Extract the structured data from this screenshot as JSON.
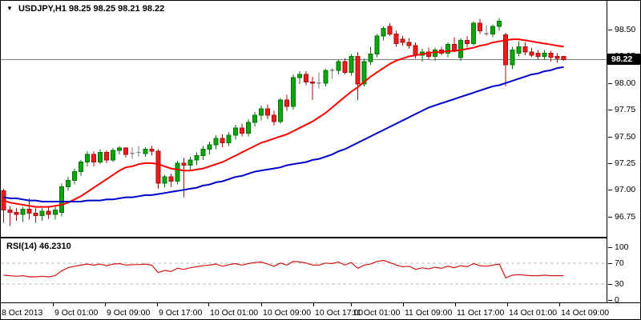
{
  "window": {
    "title_symbol": "USDJPY,H1",
    "title_ohlc": "98.25 98.25 98.21 98.22"
  },
  "icons": {
    "symbol_dropdown": "▼"
  },
  "chart_data": {
    "type": "candlestick",
    "symbol": "USDJPY",
    "timeframe": "H1",
    "current_bar": {
      "open": 98.25,
      "high": 98.25,
      "low": 98.21,
      "close": 98.22
    },
    "current_price": 98.22,
    "current_price_label": "98.22",
    "price_axis": {
      "labels": [
        "98.50",
        "98.25",
        "98.00",
        "97.75",
        "97.50",
        "97.25",
        "97.00",
        "96.75"
      ],
      "ylim": [
        96.56,
        98.77
      ]
    },
    "time_axis": {
      "labels": [
        "8 Oct 2013",
        "9 Oct 01:00",
        "9 Oct 09:00",
        "9 Oct 17:00",
        "10 Oct 01:00",
        "10 Oct 09:00",
        "10 Oct 17:00",
        "11 Oct 01:00",
        "11 Oct 09:00",
        "11 Oct 17:00",
        "14 Oct 01:00",
        "14 Oct 09:00"
      ],
      "x": [
        1,
        65,
        130,
        195,
        259,
        325,
        390,
        437,
        502,
        567,
        632,
        697
      ]
    },
    "candles": [
      [
        96.99,
        97.01,
        96.69,
        96.81
      ],
      [
        96.81,
        96.85,
        96.66,
        96.79
      ],
      [
        96.79,
        96.83,
        96.71,
        96.77
      ],
      [
        96.77,
        96.84,
        96.7,
        96.82
      ],
      [
        96.82,
        96.92,
        96.72,
        96.78
      ],
      [
        96.78,
        96.83,
        96.69,
        96.76
      ],
      [
        96.76,
        96.83,
        96.71,
        96.8
      ],
      [
        96.8,
        96.84,
        96.73,
        96.77
      ],
      [
        96.77,
        96.85,
        96.72,
        96.81
      ],
      [
        96.79,
        97.06,
        96.75,
        97.03
      ],
      [
        97.03,
        97.12,
        96.99,
        97.09
      ],
      [
        97.09,
        97.2,
        97.05,
        97.17
      ],
      [
        97.17,
        97.28,
        97.13,
        97.26
      ],
      [
        97.26,
        97.36,
        97.22,
        97.33
      ],
      [
        97.33,
        97.36,
        97.22,
        97.26
      ],
      [
        97.26,
        97.38,
        97.24,
        97.35
      ],
      [
        97.35,
        97.37,
        97.25,
        97.28
      ],
      [
        97.28,
        97.39,
        97.26,
        97.37
      ],
      [
        97.37,
        97.41,
        97.33,
        97.39
      ],
      [
        97.39,
        97.4,
        97.3,
        97.33
      ],
      [
        97.34,
        97.4,
        97.29,
        97.34
      ],
      [
        97.35,
        97.41,
        97.31,
        97.35
      ],
      [
        97.34,
        97.4,
        97.31,
        97.38
      ],
      [
        97.38,
        97.41,
        97.32,
        97.36
      ],
      [
        97.36,
        97.38,
        97.01,
        97.06
      ],
      [
        97.06,
        97.14,
        97.02,
        97.12
      ],
      [
        97.12,
        97.15,
        97.03,
        97.08
      ],
      [
        97.08,
        97.27,
        97.05,
        97.25
      ],
      [
        97.25,
        97.3,
        96.93,
        97.23
      ],
      [
        97.23,
        97.31,
        97.19,
        97.28
      ],
      [
        97.28,
        97.35,
        97.23,
        97.32
      ],
      [
        97.32,
        97.41,
        97.28,
        97.38
      ],
      [
        97.38,
        97.45,
        97.33,
        97.42
      ],
      [
        97.42,
        97.51,
        97.38,
        97.48
      ],
      [
        97.48,
        97.52,
        97.4,
        97.44
      ],
      [
        97.44,
        97.54,
        97.41,
        97.51
      ],
      [
        97.51,
        97.61,
        97.47,
        97.58
      ],
      [
        97.58,
        97.62,
        97.5,
        97.53
      ],
      [
        97.53,
        97.66,
        97.5,
        97.63
      ],
      [
        97.63,
        97.73,
        97.59,
        97.7
      ],
      [
        97.7,
        97.79,
        97.65,
        97.76
      ],
      [
        97.76,
        97.8,
        97.66,
        97.7
      ],
      [
        97.7,
        97.74,
        97.6,
        97.64
      ],
      [
        97.64,
        97.86,
        97.62,
        97.84
      ],
      [
        97.84,
        97.89,
        97.74,
        97.78
      ],
      [
        97.78,
        98.08,
        97.75,
        98.05
      ],
      [
        98.05,
        98.11,
        97.99,
        98.08
      ],
      [
        98.08,
        98.11,
        97.98,
        98.01
      ],
      [
        98.01,
        98.06,
        97.84,
        98.0
      ],
      [
        98.0,
        98.1,
        97.95,
        98.0
      ],
      [
        98.0,
        98.13,
        97.97,
        98.12
      ],
      [
        98.12,
        98.14,
        98.04,
        98.12
      ],
      [
        98.12,
        98.22,
        98.08,
        98.2
      ],
      [
        98.2,
        98.23,
        98.08,
        98.1
      ],
      [
        98.1,
        98.27,
        98.07,
        98.25
      ],
      [
        98.25,
        98.29,
        97.84,
        97.99
      ],
      [
        97.99,
        98.23,
        97.97,
        98.2
      ],
      [
        98.2,
        98.34,
        98.17,
        98.27
      ],
      [
        98.27,
        98.46,
        98.24,
        98.44
      ],
      [
        98.44,
        98.53,
        98.4,
        98.51
      ],
      [
        98.53,
        98.56,
        98.44,
        98.46
      ],
      [
        98.46,
        98.49,
        98.34,
        98.37
      ],
      [
        98.41,
        98.44,
        98.35,
        98.38
      ],
      [
        98.38,
        98.42,
        98.32,
        98.35
      ],
      [
        98.35,
        98.38,
        98.23,
        98.26
      ],
      [
        98.26,
        98.32,
        98.2,
        98.29
      ],
      [
        98.29,
        98.33,
        98.22,
        98.25
      ],
      [
        98.25,
        98.33,
        98.21,
        98.31
      ],
      [
        98.31,
        98.34,
        98.26,
        98.28
      ],
      [
        98.28,
        98.38,
        98.24,
        98.36
      ],
      [
        98.36,
        98.43,
        98.29,
        98.31
      ],
      [
        98.24,
        98.42,
        98.21,
        98.4
      ],
      [
        98.4,
        98.44,
        98.33,
        98.37
      ],
      [
        98.37,
        98.58,
        98.35,
        98.56
      ],
      [
        98.56,
        98.6,
        98.46,
        98.49
      ],
      [
        98.46,
        98.54,
        98.44,
        98.46
      ],
      [
        98.46,
        98.55,
        98.43,
        98.53
      ],
      [
        98.53,
        98.61,
        98.49,
        98.58
      ],
      [
        98.45,
        98.47,
        97.97,
        98.17
      ],
      [
        98.17,
        98.34,
        98.13,
        98.31
      ],
      [
        98.28,
        98.39,
        98.25,
        98.34
      ],
      [
        98.34,
        98.38,
        98.26,
        98.29
      ],
      [
        98.29,
        98.33,
        98.24,
        98.26
      ],
      [
        98.28,
        98.31,
        98.22,
        98.25
      ],
      [
        98.25,
        98.31,
        98.22,
        98.28
      ],
      [
        98.28,
        98.3,
        98.2,
        98.24
      ],
      [
        98.25,
        98.28,
        98.19,
        98.23
      ],
      [
        98.25,
        98.25,
        98.21,
        98.22
      ]
    ],
    "overlays": [
      {
        "name": "ma-fast",
        "color": "#ff0000",
        "values": [
          96.9,
          96.88,
          96.87,
          96.86,
          96.85,
          96.84,
          96.84,
          96.84,
          96.85,
          96.86,
          96.88,
          96.91,
          96.94,
          96.98,
          97.02,
          97.06,
          97.1,
          97.14,
          97.18,
          97.21,
          97.22,
          97.24,
          97.25,
          97.25,
          97.24,
          97.22,
          97.2,
          97.19,
          97.18,
          97.18,
          97.19,
          97.2,
          97.22,
          97.24,
          97.26,
          97.29,
          97.32,
          97.35,
          97.38,
          97.41,
          97.44,
          97.46,
          97.48,
          97.5,
          97.52,
          97.55,
          97.58,
          97.61,
          97.64,
          97.68,
          97.72,
          97.77,
          97.82,
          97.87,
          97.92,
          97.96,
          98.01,
          98.06,
          98.1,
          98.14,
          98.18,
          98.21,
          98.23,
          98.25,
          98.26,
          98.27,
          98.28,
          98.29,
          98.29,
          98.3,
          98.3,
          98.31,
          98.32,
          98.33,
          98.35,
          98.36,
          98.38,
          98.39,
          98.4,
          98.41,
          98.41,
          98.4,
          98.39,
          98.38,
          98.37,
          98.36,
          98.35,
          98.34
        ]
      },
      {
        "name": "ma-slow",
        "color": "#0000c8",
        "values": [
          96.93,
          96.92,
          96.92,
          96.91,
          96.9,
          96.9,
          96.89,
          96.89,
          96.89,
          96.89,
          96.89,
          96.89,
          96.89,
          96.9,
          96.9,
          96.9,
          96.91,
          96.91,
          96.92,
          96.93,
          96.93,
          96.94,
          96.95,
          96.95,
          96.96,
          96.97,
          96.98,
          96.99,
          97.0,
          97.01,
          97.02,
          97.04,
          97.05,
          97.07,
          97.08,
          97.1,
          97.12,
          97.13,
          97.15,
          97.17,
          97.18,
          97.19,
          97.2,
          97.21,
          97.23,
          97.24,
          97.25,
          97.26,
          97.28,
          97.29,
          97.31,
          97.33,
          97.36,
          97.38,
          97.41,
          97.44,
          97.47,
          97.5,
          97.53,
          97.56,
          97.59,
          97.62,
          97.65,
          97.68,
          97.71,
          97.74,
          97.77,
          97.79,
          97.81,
          97.83,
          97.85,
          97.87,
          97.89,
          97.91,
          97.93,
          97.95,
          97.97,
          97.98,
          98.0,
          98.02,
          98.04,
          98.06,
          98.08,
          98.09,
          98.11,
          98.12,
          98.14,
          98.15
        ]
      }
    ],
    "indicator": {
      "name": "RSI",
      "period": 14,
      "label": "RSI(14)",
      "value": "46.2310",
      "levels": [
        70,
        30
      ],
      "axis_labels": [
        "100",
        "70",
        "30",
        "0"
      ],
      "values": [
        47,
        46,
        45,
        46,
        44,
        44,
        45,
        44,
        46,
        55,
        61,
        64,
        66,
        68,
        66,
        68,
        65,
        68,
        69,
        66,
        67,
        67,
        68,
        66,
        52,
        56,
        54,
        60,
        58,
        61,
        63,
        65,
        66,
        68,
        64,
        67,
        69,
        66,
        69,
        71,
        72,
        68,
        64,
        70,
        66,
        73,
        72,
        70,
        66,
        66,
        70,
        69,
        72,
        66,
        71,
        60,
        66,
        68,
        73,
        75,
        71,
        66,
        63,
        64,
        58,
        61,
        59,
        62,
        60,
        64,
        61,
        65,
        63,
        69,
        65,
        64,
        66,
        68,
        42,
        47,
        48,
        47,
        46,
        46,
        47,
        46,
        46,
        46.2
      ]
    },
    "colors": {
      "bull_fill": "#0ca50c",
      "bull_stroke": "#067306",
      "bear_fill": "#ee1c1c",
      "bear_stroke": "#a80e0e",
      "doji": "#7d7d7d",
      "price_line": "#808080",
      "level_dash": "#bdbdbd",
      "rsi_line": "#d01818",
      "tag_bg": "#000000",
      "tag_fg": "#ffffff"
    }
  }
}
